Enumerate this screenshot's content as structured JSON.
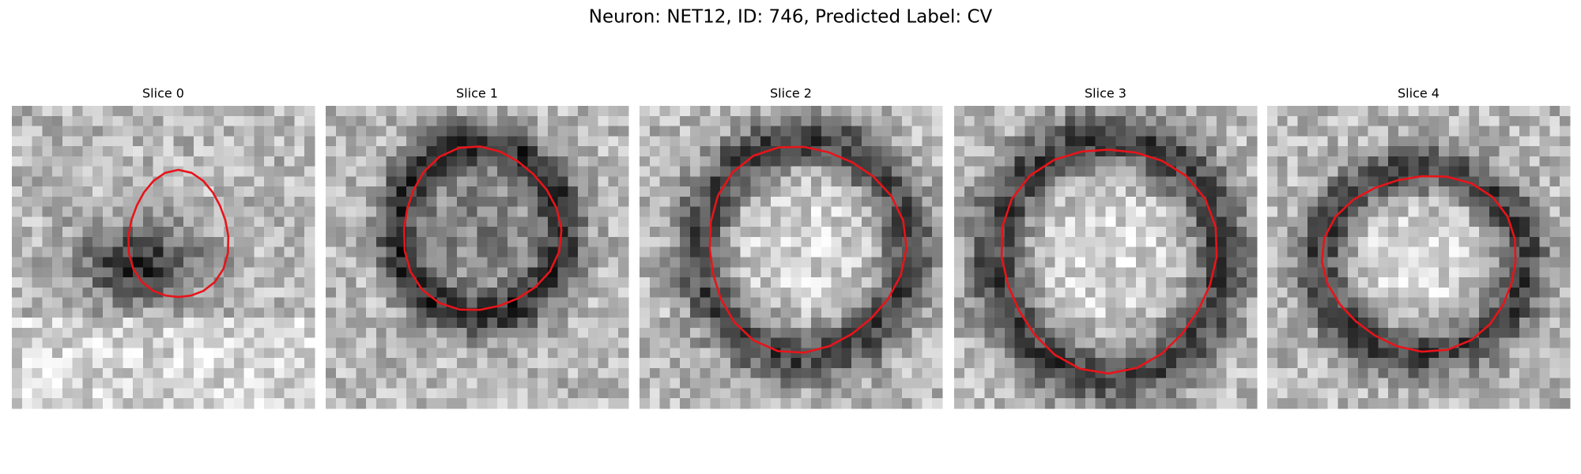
{
  "title": "Neuron: NET12, ID: 746, Predicted Label: CV",
  "panels": [
    {
      "label": "Slice 0"
    },
    {
      "label": "Slice 1"
    },
    {
      "label": "Slice 2"
    },
    {
      "label": "Slice 3"
    },
    {
      "label": "Slice 4"
    }
  ]
}
